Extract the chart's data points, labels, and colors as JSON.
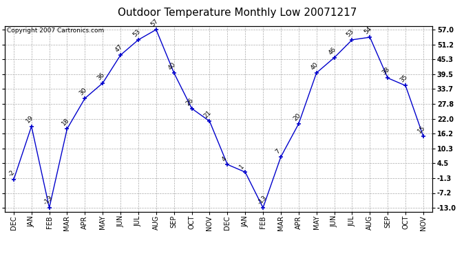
{
  "title": "Outdoor Temperature Monthly Low 20071217",
  "copyright": "Copyright 2007 Cartronics.com",
  "x_labels": [
    "DEC",
    "JAN",
    "FEB",
    "MAR",
    "APR",
    "MAY",
    "JUN",
    "JUL",
    "AUG",
    "SEP",
    "OCT",
    "NOV",
    "DEC",
    "JAN",
    "FEB",
    "MAR",
    "APR",
    "MAY",
    "JUN",
    "JUL",
    "AUG",
    "SEP",
    "OCT",
    "NOV"
  ],
  "y_values": [
    -2,
    19,
    -13,
    18,
    30,
    36,
    47,
    53,
    57,
    40,
    26,
    21,
    4,
    1,
    -13,
    7,
    20,
    40,
    46,
    53,
    54,
    38,
    35,
    15
  ],
  "y_ticks": [
    -13.0,
    -7.2,
    -1.3,
    4.5,
    10.3,
    16.2,
    22.0,
    27.8,
    33.7,
    39.5,
    45.3,
    51.2,
    57.0
  ],
  "y_min": -14.5,
  "y_max": 58.5,
  "line_color": "#0000cc",
  "marker": "+",
  "background_color": "#ffffff",
  "grid_color": "#aaaaaa",
  "title_fontsize": 11,
  "label_fontsize": 7,
  "annotation_fontsize": 6.5,
  "copyright_fontsize": 6.5
}
